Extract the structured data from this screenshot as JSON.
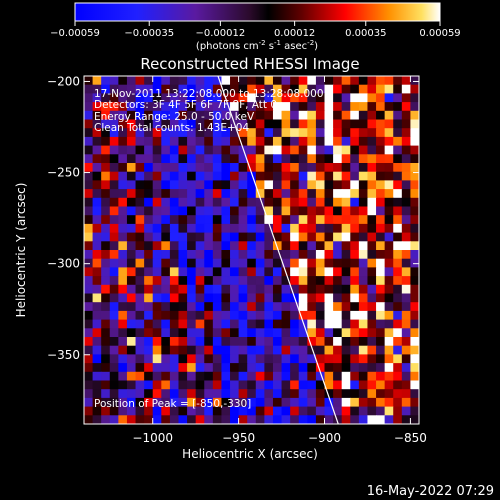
{
  "chart_data": {
    "type": "heatmap",
    "colorbar": {
      "ticks": [
        "-0.00059",
        "-0.00035",
        "-0.00012",
        "0.00012",
        "0.00035",
        "0.00059"
      ],
      "range": [
        -0.00059,
        0.00059
      ],
      "units_text": "(photons cm",
      "units_exp1": "-2",
      "units_mid": " s",
      "units_exp2": "-1",
      "units_mid2": " asec",
      "units_exp3": "-2",
      "units_end": ")"
    },
    "title": "Reconstructed RHESSI Image",
    "xlabel": "Heliocentric X (arcsec)",
    "ylabel": "Heliocentric Y (arcsec)",
    "xlim": [
      -1040,
      -845
    ],
    "ylim": [
      -388,
      -197
    ],
    "xticks": [
      -1000,
      -950,
      -900,
      -850
    ],
    "yticks": [
      -350,
      -300,
      -250,
      -200
    ],
    "xtick_labels": [
      "−1000",
      "−950",
      "−900",
      "−850"
    ],
    "ytick_labels": [
      "−350",
      "−300",
      "−250",
      "−200"
    ],
    "limb_line": [
      [
        -962,
        -197
      ],
      [
        -892,
        -388
      ]
    ],
    "annotations": [
      "17-Nov-2011 13:22:08.000 to 13:28:08.000",
      "Detectors: 3F 4F 5F 6F 7F 8F, Att 0",
      "Energy Range: 25.0 - 50.0 keV",
      "Clean    Total counts: 1.43E+04"
    ],
    "peak_text": "Position of Peak = [-850,-330]",
    "grid": false
  },
  "footer": {
    "timestamp": "16-May-2022 07:29"
  }
}
